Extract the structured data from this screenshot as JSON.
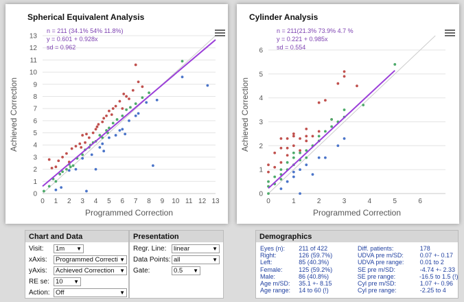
{
  "chart_data": [
    {
      "type": "scatter",
      "title": "Spherical Equivalent Analysis",
      "xlabel": "Programmed Correction",
      "ylabel": "Achieved Correction",
      "xlim": [
        0,
        13
      ],
      "ylim": [
        0,
        13
      ],
      "xticks": [
        0,
        1,
        2,
        3,
        4,
        5,
        6,
        7,
        8,
        9,
        10,
        11,
        12,
        13
      ],
      "yticks": [
        0,
        1,
        2,
        3,
        4,
        5,
        6,
        7,
        8,
        9,
        10,
        11,
        12,
        13
      ],
      "grid": true,
      "annotation": [
        "n = 211 (34.1% 54% 11.8%)",
        "y = 0.601 + 0.928x",
        "sd = 0.962"
      ],
      "regression": {
        "intercept": 0.601,
        "slope": 0.928
      },
      "identity_line": true,
      "series": [
        {
          "color": "#c0504d",
          "points": [
            [
              0.5,
              2.8
            ],
            [
              0.7,
              2.1
            ],
            [
              1,
              2.2
            ],
            [
              1.2,
              2.7
            ],
            [
              1.5,
              3.0
            ],
            [
              1.8,
              3.3
            ],
            [
              2,
              2.6
            ],
            [
              2.2,
              3.7
            ],
            [
              2.5,
              3.9
            ],
            [
              2.8,
              4.1
            ],
            [
              3,
              4.8
            ],
            [
              3.2,
              4.2
            ],
            [
              3.5,
              4.6
            ],
            [
              3.8,
              5.0
            ],
            [
              4,
              5.3
            ],
            [
              4.2,
              5.7
            ],
            [
              4.5,
              5.9
            ],
            [
              4.8,
              6.4
            ],
            [
              5,
              6.8
            ],
            [
              5.2,
              6.5
            ],
            [
              5.5,
              7.2
            ],
            [
              5.8,
              7.6
            ],
            [
              6,
              7.0
            ],
            [
              6.3,
              8.0
            ],
            [
              6.5,
              7.8
            ],
            [
              6.8,
              8.5
            ],
            [
              7,
              10.6
            ],
            [
              7.2,
              9.2
            ],
            [
              7.5,
              8.8
            ],
            [
              4.6,
              6.2
            ],
            [
              5.3,
              7.0
            ],
            [
              6.1,
              8.2
            ],
            [
              3.3,
              4.9
            ],
            [
              2.9,
              3.8
            ],
            [
              4.1,
              5.5
            ]
          ]
        },
        {
          "color": "#4daa6a",
          "points": [
            [
              0.1,
              0.2
            ],
            [
              0.5,
              0.6
            ],
            [
              0.8,
              1.2
            ],
            [
              1,
              1.0
            ],
            [
              1.3,
              1.6
            ],
            [
              1.5,
              1.8
            ],
            [
              1.8,
              2.0
            ],
            [
              2,
              2.4
            ],
            [
              2.3,
              2.3
            ],
            [
              2.6,
              2.9
            ],
            [
              3,
              3.2
            ],
            [
              3.2,
              3.6
            ],
            [
              3.5,
              3.8
            ],
            [
              3.8,
              4.2
            ],
            [
              4,
              4.3
            ],
            [
              4.3,
              4.8
            ],
            [
              4.5,
              4.6
            ],
            [
              4.8,
              5.2
            ],
            [
              5,
              5.4
            ],
            [
              5.3,
              5.8
            ],
            [
              5.6,
              6.1
            ],
            [
              6,
              6.4
            ],
            [
              6.3,
              6.9
            ],
            [
              6.6,
              7.1
            ],
            [
              7,
              7.4
            ],
            [
              7.5,
              7.9
            ],
            [
              8,
              8.3
            ],
            [
              10.5,
              10.9
            ],
            [
              3.6,
              4.0
            ],
            [
              2.1,
              2.2
            ],
            [
              4.9,
              5.0
            ]
          ]
        },
        {
          "color": "#4a74c9",
          "points": [
            [
              1,
              0.3
            ],
            [
              1.4,
              0.5
            ],
            [
              2,
              1.9
            ],
            [
              2.5,
              2.0
            ],
            [
              3,
              2.9
            ],
            [
              3.3,
              0.2
            ],
            [
              3.7,
              3.2
            ],
            [
              4,
              2.0
            ],
            [
              4.3,
              3.8
            ],
            [
              4.5,
              4.1
            ],
            [
              5,
              4.6
            ],
            [
              5.5,
              4.8
            ],
            [
              5.8,
              5.2
            ],
            [
              6,
              5.3
            ],
            [
              6.5,
              6.0
            ],
            [
              7,
              6.4
            ],
            [
              7.2,
              6.6
            ],
            [
              7.8,
              7.5
            ],
            [
              8.3,
              2.3
            ],
            [
              8.6,
              7.7
            ],
            [
              10.5,
              9.6
            ],
            [
              12.4,
              8.9
            ],
            [
              6.2,
              4.9
            ],
            [
              4.6,
              3.5
            ]
          ]
        }
      ]
    },
    {
      "type": "scatter",
      "title": "Cylinder Analysis",
      "xlabel": "Programmed Correction",
      "ylabel": "Achieved Correction",
      "xlim": [
        0,
        7
      ],
      "ylim": [
        0,
        6.6
      ],
      "xticks": [
        0,
        1,
        2,
        3,
        4,
        5,
        6
      ],
      "yticks": [
        0,
        1,
        2,
        3,
        4,
        5,
        6
      ],
      "grid": true,
      "annotation": [
        "n = 211(21.3% 73.9% 4.7 %",
        "y = 0.221 + 0.985x",
        "sd = 0.554"
      ],
      "regression": {
        "intercept": 0.221,
        "slope": 0.985
      },
      "identity_line": true,
      "series": [
        {
          "color": "#c0504d",
          "points": [
            [
              0,
              0.9
            ],
            [
              0,
              1.2
            ],
            [
              0.25,
              1.7
            ],
            [
              0.25,
              1.1
            ],
            [
              0.5,
              1.9
            ],
            [
              0.5,
              1.3
            ],
            [
              0.5,
              2.3
            ],
            [
              0.75,
              1.6
            ],
            [
              0.75,
              2.3
            ],
            [
              1,
              2.0
            ],
            [
              1,
              2.4
            ],
            [
              1,
              2.5
            ],
            [
              1.25,
              2.3
            ],
            [
              1.25,
              1.8
            ],
            [
              1.5,
              2.7
            ],
            [
              1.5,
              2.2
            ],
            [
              1.75,
              2.4
            ],
            [
              2,
              3.8
            ],
            [
              2,
              2.6
            ],
            [
              2.25,
              3.9
            ],
            [
              2.5,
              3.1
            ],
            [
              2.75,
              4.6
            ],
            [
              3,
              5.1
            ],
            [
              3,
              4.9
            ],
            [
              3.5,
              4.5
            ],
            [
              0.75,
              1.9
            ],
            [
              1.5,
              2.4
            ]
          ]
        },
        {
          "color": "#4daa6a",
          "points": [
            [
              0,
              0
            ],
            [
              0,
              0.3
            ],
            [
              0,
              0.5
            ],
            [
              0.25,
              0.4
            ],
            [
              0.25,
              0.7
            ],
            [
              0.5,
              0.8
            ],
            [
              0.5,
              1.0
            ],
            [
              0.5,
              0.6
            ],
            [
              0.75,
              1.0
            ],
            [
              0.75,
              1.3
            ],
            [
              1,
              1.2
            ],
            [
              1,
              1.5
            ],
            [
              1,
              1.7
            ],
            [
              1.25,
              1.4
            ],
            [
              1.25,
              1.7
            ],
            [
              1.5,
              1.8
            ],
            [
              1.5,
              1.5
            ],
            [
              1.75,
              2.0
            ],
            [
              2,
              2.2
            ],
            [
              2,
              2.4
            ],
            [
              2.25,
              2.6
            ],
            [
              2.5,
              2.8
            ],
            [
              2.75,
              3.0
            ],
            [
              3,
              3.2
            ],
            [
              3,
              3.5
            ],
            [
              3.75,
              3.7
            ],
            [
              5,
              5.4
            ],
            [
              2.5,
              3.1
            ]
          ]
        },
        {
          "color": "#4a74c9",
          "points": [
            [
              0.5,
              0.2
            ],
            [
              0.75,
              0.5
            ],
            [
              1,
              0.9
            ],
            [
              1,
              0.7
            ],
            [
              1.25,
              0
            ],
            [
              1.25,
              1.0
            ],
            [
              1.5,
              1.2
            ],
            [
              1.75,
              0.8
            ],
            [
              2,
              1.5
            ],
            [
              2.25,
              1.5
            ],
            [
              2.75,
              2.0
            ],
            [
              3,
              2.3
            ]
          ]
        }
      ]
    }
  ],
  "controls": {
    "chart_and_data": {
      "heading": "Chart and Data",
      "rows": [
        {
          "label": "Visit:",
          "value": "1m"
        },
        {
          "label": "xAxis:",
          "value": "Programmed Correction"
        },
        {
          "label": "yAxis:",
          "value": "Achieved Correction"
        },
        {
          "label": "RE se:",
          "value": "10"
        },
        {
          "label": "Action:",
          "value": "Off"
        }
      ]
    },
    "presentation": {
      "heading": "Presentation",
      "rows": [
        {
          "label": "Regr. Line:",
          "value": "linear"
        },
        {
          "label": "Data Points:",
          "value": "all"
        },
        {
          "label": "Gate:",
          "value": "0.5"
        }
      ]
    }
  },
  "demographics": {
    "heading": "Demographics",
    "rows": [
      [
        "Eyes (n):",
        "211 of 422",
        "Diff. patients:",
        "178"
      ],
      [
        "Right:",
        "126 (59.7%)",
        "UDVA pre m/SD:",
        "0.07 +- 0.17"
      ],
      [
        "Left:",
        "85 (40.3%)",
        "UDVA pre range:",
        "0.01 to 2"
      ],
      [
        "Female:",
        "125 (59.2%)",
        "SE pre m/SD:",
        "-4.74 +- 2.33"
      ],
      [
        "Male:",
        "86 (40.8%)",
        "SE pre range:",
        "-16.5 to 1.5 (!)"
      ],
      [
        "Age m/SD:",
        "35.1 +- 8.15",
        "Cyl pre m/SD:",
        "1.07 +- 0.96"
      ],
      [
        "Age range:",
        "14 to 60 (!)",
        "Cyl pre range:",
        "-2.25 to 4"
      ]
    ]
  },
  "colors": {
    "regression": "#9b3fd9",
    "identity": "#cccccc",
    "annotation": "#7b3fb0",
    "demographics_text": "#2040a0"
  },
  "icons": [
    "hamburger-menu-icon"
  ]
}
